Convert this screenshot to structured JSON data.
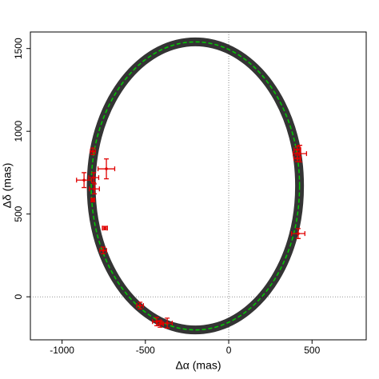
{
  "chart_data": {
    "type": "scatter",
    "xlabel": "Δα (mas)",
    "ylabel": "Δδ (mas)",
    "xlim": [
      -1190,
      825
    ],
    "ylim": [
      -260,
      1600
    ],
    "xticks": [
      -1000,
      -500,
      0,
      500
    ],
    "yticks": [
      0,
      500,
      1000,
      1500
    ],
    "reference_lines": {
      "x": 0,
      "y": 0
    },
    "orbit": {
      "color": "#00cc00",
      "band_color": "#111111",
      "x": [
        425,
        388,
        279,
        113,
        -91,
        -309,
        -513,
        -679,
        -788,
        -825,
        -788,
        -679,
        -513,
        -309,
        -91,
        113,
        279,
        388
      ],
      "values": [
        670,
        968,
        1229,
        1423,
        1527,
        1527,
        1423,
        1229,
        968,
        670,
        372,
        111,
        -83,
        -187,
        -187,
        -83,
        111,
        372
      ]
    },
    "series": [
      {
        "color": "#e00000",
        "x": [
          -815,
          -734,
          -868,
          -810,
          -806,
          -815,
          -743,
          -753,
          -532,
          -432,
          -412,
          -369,
          412,
          427,
          412,
          417
        ],
        "values": [
          879,
          773,
          705,
          720,
          652,
          585,
          415,
          280,
          -53,
          -150,
          -164,
          -159,
          889,
          865,
          836,
          382
        ],
        "xerr": [
          15,
          50,
          45,
          30,
          30,
          10,
          15,
          20,
          20,
          25,
          20,
          30,
          20,
          40,
          20,
          40
        ],
        "yerr": [
          20,
          60,
          45,
          30,
          30,
          10,
          10,
          20,
          20,
          25,
          20,
          30,
          20,
          50,
          20,
          30
        ]
      }
    ]
  }
}
